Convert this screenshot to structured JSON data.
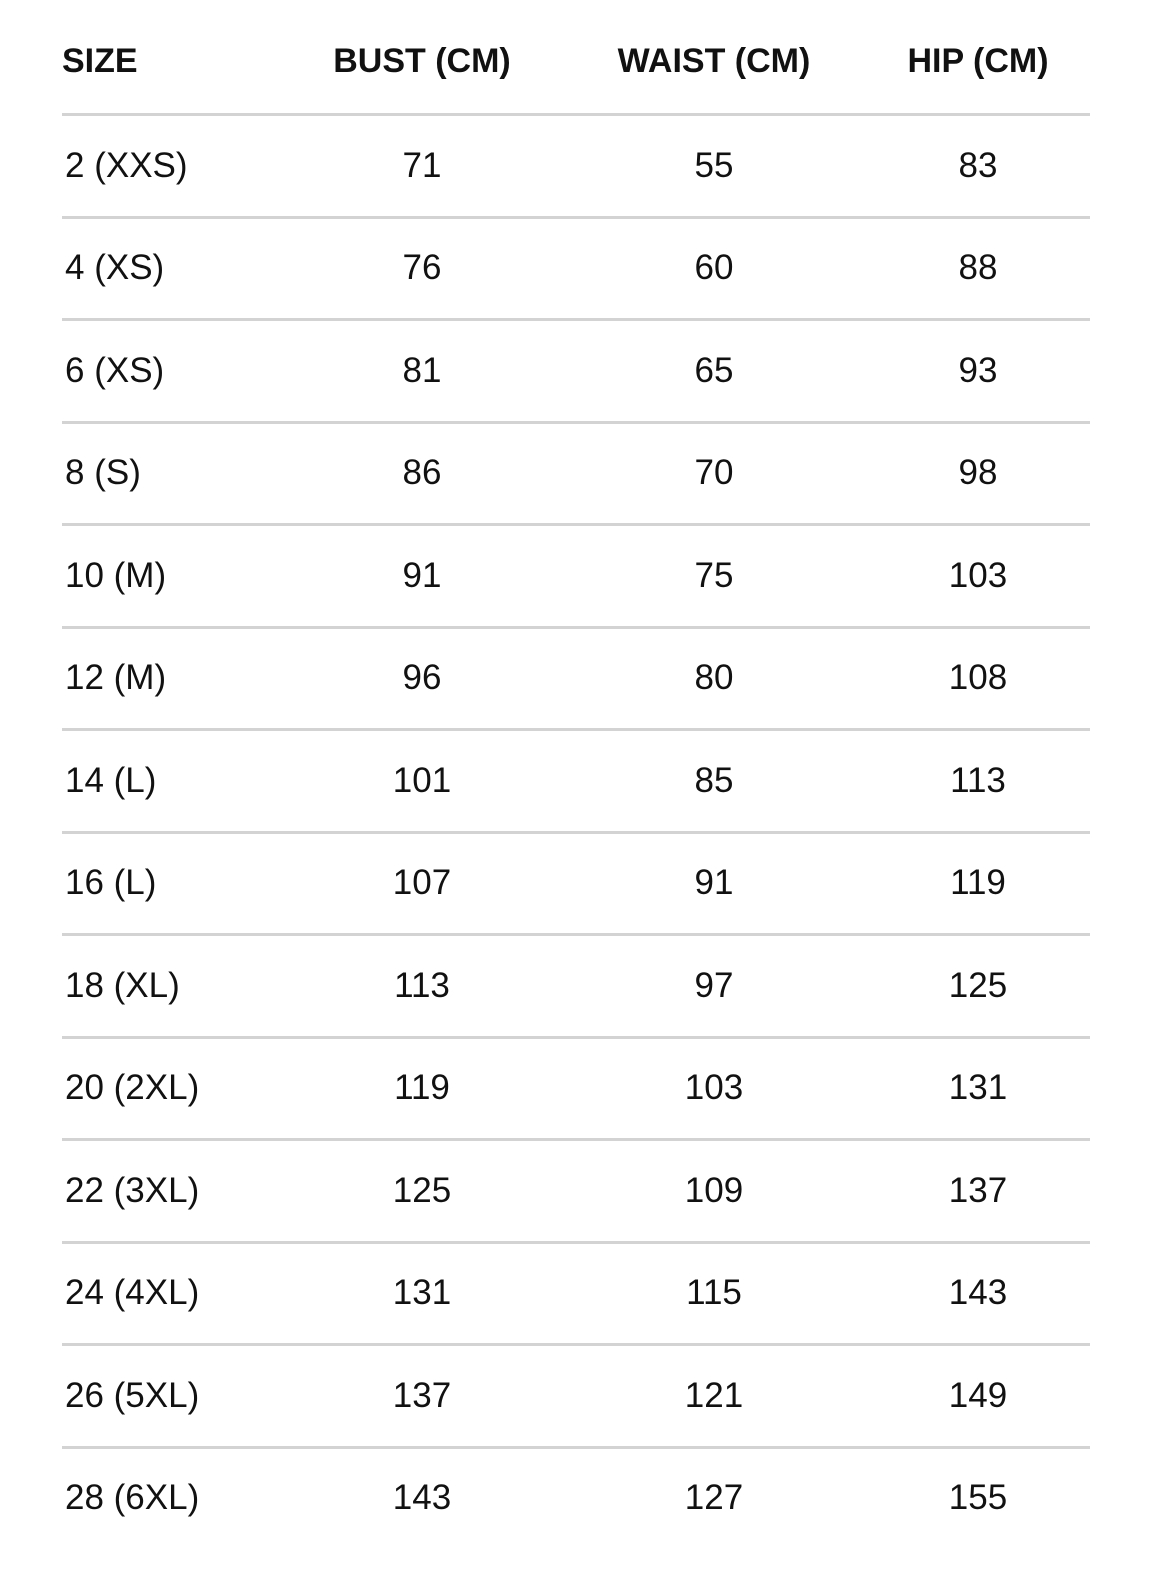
{
  "table": {
    "headers": [
      "SIZE",
      "BUST (CM)",
      "WAIST (CM)",
      "HIP (CM)"
    ],
    "rows": [
      [
        "2 (XXS)",
        "71",
        "55",
        "83"
      ],
      [
        "4 (XS)",
        "76",
        "60",
        "88"
      ],
      [
        "6 (XS)",
        "81",
        "65",
        "93"
      ],
      [
        "8 (S)",
        "86",
        "70",
        "98"
      ],
      [
        "10 (M)",
        "91",
        "75",
        "103"
      ],
      [
        "12 (M)",
        "96",
        "80",
        "108"
      ],
      [
        "14 (L)",
        "101",
        "85",
        "113"
      ],
      [
        "16 (L)",
        "107",
        "91",
        "119"
      ],
      [
        "18 (XL)",
        "113",
        "97",
        "125"
      ],
      [
        "20 (2XL)",
        "119",
        "103",
        "131"
      ],
      [
        "22 (3XL)",
        "125",
        "109",
        "137"
      ],
      [
        "24 (4XL)",
        "131",
        "115",
        "143"
      ],
      [
        "26 (5XL)",
        "137",
        "121",
        "149"
      ],
      [
        "28 (6XL)",
        "143",
        "127",
        "155"
      ]
    ]
  }
}
